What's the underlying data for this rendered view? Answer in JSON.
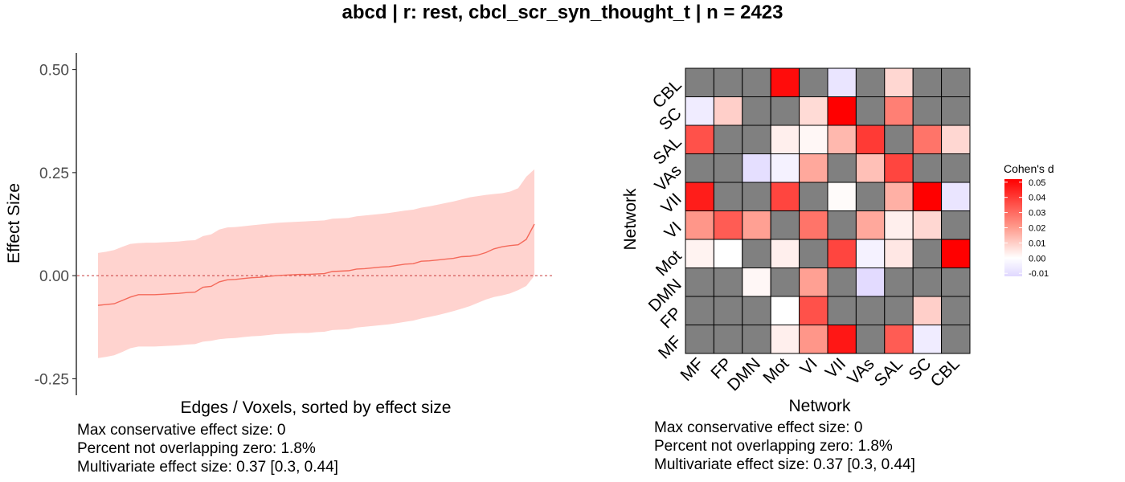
{
  "title": "abcd | r: rest, cbcl_scr_syn_thought_t | n = 2423",
  "colors": {
    "ribbon": "#ffd3cf",
    "line": "#f4695a",
    "zero_line": "#c83c3c",
    "missing_cell": "#808080",
    "positive": "#ff0000",
    "negative": "#e0d8ff"
  },
  "chart_data": [
    {
      "type": "line",
      "name": "effect-size-spectrum",
      "xlabel": "Edges / Voxels, sorted by effect size",
      "ylabel": "Effect Size",
      "ylim": [
        -0.29,
        0.54
      ],
      "yticks": [
        0.5,
        0.25,
        0.0,
        -0.25
      ],
      "ytick_labels": [
        "0.50",
        "0.25",
        "0.00",
        "-0.25"
      ],
      "zero_line": true,
      "x": [
        1,
        2,
        3,
        4,
        5,
        6,
        7,
        8,
        9,
        10,
        11,
        12,
        13,
        14,
        15,
        16,
        17,
        18,
        19,
        20,
        21,
        22,
        23,
        24,
        25,
        26,
        27,
        28,
        29,
        30,
        31,
        32,
        33,
        34,
        35,
        36,
        37,
        38,
        39,
        40,
        41,
        42,
        43,
        44,
        45,
        46,
        47,
        48,
        49,
        50,
        51,
        52,
        53,
        54,
        55
      ],
      "estimate": [
        -0.072,
        -0.07,
        -0.068,
        -0.06,
        -0.052,
        -0.046,
        -0.046,
        -0.046,
        -0.045,
        -0.044,
        -0.043,
        -0.041,
        -0.04,
        -0.028,
        -0.026,
        -0.015,
        -0.01,
        -0.009,
        -0.007,
        -0.005,
        -0.004,
        -0.002,
        0.0,
        0.001,
        0.002,
        0.003,
        0.003,
        0.004,
        0.005,
        0.01,
        0.011,
        0.012,
        0.016,
        0.017,
        0.019,
        0.021,
        0.022,
        0.025,
        0.028,
        0.029,
        0.035,
        0.036,
        0.038,
        0.04,
        0.042,
        0.046,
        0.047,
        0.05,
        0.056,
        0.065,
        0.07,
        0.073,
        0.075,
        0.088,
        0.125
      ],
      "lower": [
        -0.2,
        -0.197,
        -0.193,
        -0.185,
        -0.176,
        -0.172,
        -0.172,
        -0.172,
        -0.171,
        -0.17,
        -0.169,
        -0.167,
        -0.166,
        -0.16,
        -0.158,
        -0.154,
        -0.152,
        -0.151,
        -0.149,
        -0.147,
        -0.146,
        -0.144,
        -0.142,
        -0.141,
        -0.14,
        -0.139,
        -0.139,
        -0.137,
        -0.136,
        -0.132,
        -0.131,
        -0.13,
        -0.126,
        -0.124,
        -0.122,
        -0.12,
        -0.118,
        -0.115,
        -0.112,
        -0.109,
        -0.104,
        -0.1,
        -0.096,
        -0.091,
        -0.086,
        -0.08,
        -0.074,
        -0.066,
        -0.058,
        -0.052,
        -0.048,
        -0.043,
        -0.035,
        -0.025,
        0.0
      ],
      "upper": [
        0.055,
        0.058,
        0.062,
        0.07,
        0.077,
        0.079,
        0.08,
        0.08,
        0.081,
        0.082,
        0.083,
        0.085,
        0.086,
        0.096,
        0.1,
        0.112,
        0.117,
        0.118,
        0.12,
        0.122,
        0.124,
        0.126,
        0.128,
        0.129,
        0.13,
        0.131,
        0.132,
        0.133,
        0.134,
        0.138,
        0.139,
        0.14,
        0.144,
        0.146,
        0.148,
        0.15,
        0.152,
        0.155,
        0.158,
        0.16,
        0.165,
        0.168,
        0.172,
        0.176,
        0.18,
        0.185,
        0.19,
        0.193,
        0.196,
        0.198,
        0.2,
        0.204,
        0.212,
        0.24,
        0.258
      ],
      "stats": [
        "Max conservative effect size: 0",
        "Percent not overlapping zero: 1.8%",
        "Multivariate effect size: 0.37 [0.3, 0.44]"
      ]
    },
    {
      "type": "heatmap",
      "name": "network-matrix",
      "xlabel": "Network",
      "ylabel": "Network",
      "networks": [
        "MF",
        "FP",
        "DMN",
        "Mot",
        "VI",
        "VII",
        "VAs",
        "SAL",
        "SC",
        "CBL"
      ],
      "legend": {
        "title": "Cohen's d",
        "breaks": [
          0.05,
          0.04,
          0.03,
          0.02,
          0.01,
          0.0,
          -0.01
        ],
        "break_labels": [
          "0.05",
          "0.04",
          "0.03",
          "0.02",
          "0.01",
          "0.00",
          "-0.01"
        ],
        "limits": [
          -0.012,
          0.052
        ]
      },
      "rows_top_to_bottom": [
        "CBL",
        "SC",
        "SAL",
        "VAs",
        "VII",
        "VI",
        "Mot",
        "DMN",
        "FP",
        "MF"
      ],
      "values": [
        [
          null,
          null,
          null,
          0.05,
          null,
          -0.008,
          null,
          0.01,
          null,
          null
        ],
        [
          -0.006,
          0.012,
          null,
          null,
          0.009,
          0.052,
          null,
          0.03,
          null,
          null
        ],
        [
          0.038,
          null,
          null,
          0.004,
          0.002,
          0.018,
          0.042,
          null,
          0.032,
          0.01
        ],
        [
          null,
          null,
          -0.01,
          -0.004,
          0.022,
          null,
          0.016,
          0.04,
          null,
          null
        ],
        [
          0.047,
          null,
          null,
          0.04,
          null,
          0.001,
          null,
          0.02,
          0.055,
          -0.008
        ],
        [
          0.026,
          0.036,
          0.024,
          null,
          0.032,
          null,
          0.022,
          0.004,
          0.01,
          null
        ],
        [
          0.003,
          0.0,
          null,
          0.004,
          null,
          0.04,
          -0.004,
          0.006,
          null,
          0.052
        ],
        [
          null,
          null,
          0.002,
          null,
          0.024,
          null,
          -0.011,
          null,
          null,
          null
        ],
        [
          null,
          null,
          null,
          0.0,
          0.038,
          null,
          null,
          null,
          0.012,
          null
        ],
        [
          null,
          null,
          null,
          0.004,
          0.026,
          0.048,
          null,
          0.036,
          -0.006,
          null
        ]
      ],
      "stats": [
        "Max conservative effect size: 0",
        "Percent not overlapping zero: 1.8%",
        "Multivariate effect size: 0.37 [0.3, 0.44]"
      ]
    }
  ]
}
